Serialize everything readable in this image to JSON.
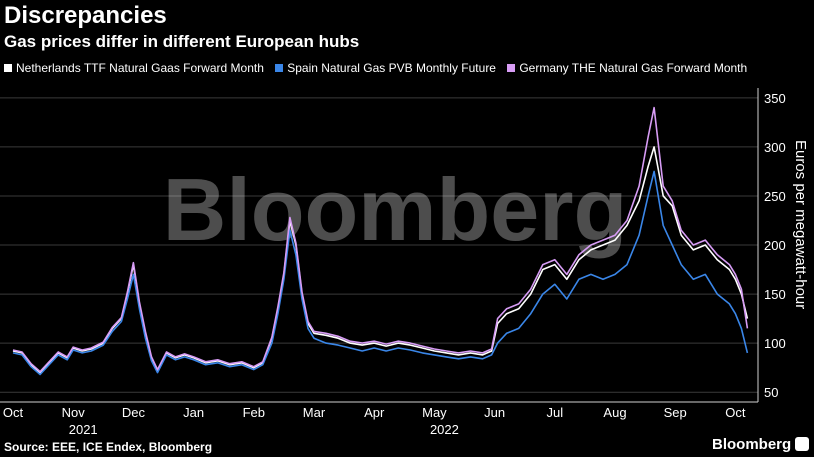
{
  "header": {
    "title": "Discrepancies",
    "subtitle": "Gas prices differ in different European hubs"
  },
  "footer": {
    "source": "Source: EEE, ICE Endex, Bloomberg",
    "brand": "Bloomberg"
  },
  "watermark": "Bloomberg",
  "colors": {
    "netherlands": "#ffffff",
    "spain": "#3a86e8",
    "germany": "#d79cf5",
    "background": "#000000",
    "grid": "#3a3a3a"
  },
  "chart_data": {
    "type": "line",
    "title": "Discrepancies",
    "subtitle": "Gas prices differ in different European hubs",
    "xlabel": "",
    "ylabel": "Euros per megawatt-hour",
    "ylim": [
      40,
      360
    ],
    "y_ticks": [
      50,
      100,
      150,
      200,
      250,
      300,
      350
    ],
    "y_axis_side": "right",
    "grid": true,
    "legend_placement": "top-left",
    "x_months": [
      {
        "label": "Oct",
        "index": 0
      },
      {
        "label": "Nov",
        "index": 1
      },
      {
        "label": "Dec",
        "index": 2
      },
      {
        "label": "Jan",
        "index": 3
      },
      {
        "label": "Feb",
        "index": 4
      },
      {
        "label": "Mar",
        "index": 5
      },
      {
        "label": "Apr",
        "index": 6
      },
      {
        "label": "May",
        "index": 7
      },
      {
        "label": "Jun",
        "index": 8
      },
      {
        "label": "Jul",
        "index": 9
      },
      {
        "label": "Aug",
        "index": 10
      },
      {
        "label": "Sep",
        "index": 11
      },
      {
        "label": "Oct",
        "index": 12
      }
    ],
    "x_years": [
      {
        "label": "2021",
        "index": 1
      },
      {
        "label": "2022",
        "index": 7
      }
    ],
    "series": [
      {
        "name": "Netherlands TTF Natural Gaas Forward Month",
        "key": "netherlands",
        "points": [
          [
            0,
            92
          ],
          [
            0.15,
            90
          ],
          [
            0.3,
            78
          ],
          [
            0.45,
            70
          ],
          [
            0.6,
            80
          ],
          [
            0.75,
            90
          ],
          [
            0.9,
            85
          ],
          [
            1.0,
            95
          ],
          [
            1.15,
            92
          ],
          [
            1.3,
            94
          ],
          [
            1.5,
            100
          ],
          [
            1.65,
            115
          ],
          [
            1.8,
            125
          ],
          [
            1.9,
            150
          ],
          [
            2.0,
            180
          ],
          [
            2.1,
            140
          ],
          [
            2.2,
            110
          ],
          [
            2.3,
            85
          ],
          [
            2.4,
            72
          ],
          [
            2.55,
            90
          ],
          [
            2.7,
            85
          ],
          [
            2.85,
            88
          ],
          [
            3.0,
            85
          ],
          [
            3.2,
            80
          ],
          [
            3.4,
            82
          ],
          [
            3.6,
            78
          ],
          [
            3.8,
            80
          ],
          [
            4.0,
            75
          ],
          [
            4.15,
            80
          ],
          [
            4.3,
            105
          ],
          [
            4.4,
            135
          ],
          [
            4.5,
            170
          ],
          [
            4.6,
            225
          ],
          [
            4.7,
            200
          ],
          [
            4.8,
            150
          ],
          [
            4.9,
            120
          ],
          [
            5.0,
            110
          ],
          [
            5.2,
            108
          ],
          [
            5.4,
            105
          ],
          [
            5.6,
            100
          ],
          [
            5.8,
            98
          ],
          [
            6.0,
            100
          ],
          [
            6.2,
            97
          ],
          [
            6.4,
            100
          ],
          [
            6.6,
            98
          ],
          [
            6.8,
            95
          ],
          [
            7.0,
            92
          ],
          [
            7.2,
            90
          ],
          [
            7.4,
            88
          ],
          [
            7.6,
            90
          ],
          [
            7.8,
            88
          ],
          [
            7.95,
            92
          ],
          [
            8.05,
            120
          ],
          [
            8.2,
            130
          ],
          [
            8.4,
            135
          ],
          [
            8.6,
            150
          ],
          [
            8.8,
            175
          ],
          [
            9.0,
            180
          ],
          [
            9.2,
            165
          ],
          [
            9.4,
            185
          ],
          [
            9.6,
            195
          ],
          [
            9.8,
            200
          ],
          [
            10.0,
            205
          ],
          [
            10.2,
            220
          ],
          [
            10.4,
            245
          ],
          [
            10.55,
            280
          ],
          [
            10.65,
            300
          ],
          [
            10.8,
            250
          ],
          [
            10.95,
            240
          ],
          [
            11.1,
            210
          ],
          [
            11.3,
            195
          ],
          [
            11.5,
            200
          ],
          [
            11.7,
            185
          ],
          [
            11.9,
            175
          ],
          [
            12.0,
            165
          ],
          [
            12.1,
            150
          ],
          [
            12.2,
            125
          ]
        ]
      },
      {
        "name": "Spain Natural Gas PVB Monthly Future",
        "key": "spain",
        "points": [
          [
            0,
            90
          ],
          [
            0.15,
            88
          ],
          [
            0.3,
            76
          ],
          [
            0.45,
            68
          ],
          [
            0.6,
            78
          ],
          [
            0.75,
            88
          ],
          [
            0.9,
            83
          ],
          [
            1.0,
            93
          ],
          [
            1.15,
            90
          ],
          [
            1.3,
            92
          ],
          [
            1.5,
            98
          ],
          [
            1.65,
            112
          ],
          [
            1.8,
            122
          ],
          [
            1.9,
            145
          ],
          [
            2.0,
            170
          ],
          [
            2.1,
            135
          ],
          [
            2.2,
            105
          ],
          [
            2.3,
            82
          ],
          [
            2.4,
            70
          ],
          [
            2.55,
            88
          ],
          [
            2.7,
            83
          ],
          [
            2.85,
            86
          ],
          [
            3.0,
            83
          ],
          [
            3.2,
            78
          ],
          [
            3.4,
            80
          ],
          [
            3.6,
            76
          ],
          [
            3.8,
            78
          ],
          [
            4.0,
            73
          ],
          [
            4.15,
            78
          ],
          [
            4.3,
            100
          ],
          [
            4.4,
            130
          ],
          [
            4.5,
            165
          ],
          [
            4.6,
            215
          ],
          [
            4.7,
            190
          ],
          [
            4.8,
            145
          ],
          [
            4.9,
            115
          ],
          [
            5.0,
            105
          ],
          [
            5.2,
            100
          ],
          [
            5.4,
            98
          ],
          [
            5.6,
            95
          ],
          [
            5.8,
            92
          ],
          [
            6.0,
            95
          ],
          [
            6.2,
            92
          ],
          [
            6.4,
            95
          ],
          [
            6.6,
            93
          ],
          [
            6.8,
            90
          ],
          [
            7.0,
            88
          ],
          [
            7.2,
            86
          ],
          [
            7.4,
            84
          ],
          [
            7.6,
            86
          ],
          [
            7.8,
            84
          ],
          [
            7.95,
            88
          ],
          [
            8.05,
            100
          ],
          [
            8.2,
            110
          ],
          [
            8.4,
            115
          ],
          [
            8.6,
            130
          ],
          [
            8.8,
            150
          ],
          [
            9.0,
            160
          ],
          [
            9.2,
            145
          ],
          [
            9.4,
            165
          ],
          [
            9.6,
            170
          ],
          [
            9.8,
            165
          ],
          [
            10.0,
            170
          ],
          [
            10.2,
            180
          ],
          [
            10.4,
            210
          ],
          [
            10.55,
            250
          ],
          [
            10.65,
            275
          ],
          [
            10.8,
            220
          ],
          [
            10.95,
            200
          ],
          [
            11.1,
            180
          ],
          [
            11.3,
            165
          ],
          [
            11.5,
            170
          ],
          [
            11.7,
            150
          ],
          [
            11.9,
            140
          ],
          [
            12.0,
            130
          ],
          [
            12.1,
            115
          ],
          [
            12.2,
            90
          ]
        ]
      },
      {
        "name": "Germany THE Natural Gas Forward Month",
        "key": "germany",
        "points": [
          [
            0,
            93
          ],
          [
            0.15,
            91
          ],
          [
            0.3,
            79
          ],
          [
            0.45,
            71
          ],
          [
            0.6,
            81
          ],
          [
            0.75,
            91
          ],
          [
            0.9,
            86
          ],
          [
            1.0,
            96
          ],
          [
            1.15,
            93
          ],
          [
            1.3,
            95
          ],
          [
            1.5,
            101
          ],
          [
            1.65,
            116
          ],
          [
            1.8,
            126
          ],
          [
            1.9,
            152
          ],
          [
            2.0,
            182
          ],
          [
            2.1,
            142
          ],
          [
            2.2,
            112
          ],
          [
            2.3,
            86
          ],
          [
            2.4,
            73
          ],
          [
            2.55,
            91
          ],
          [
            2.7,
            86
          ],
          [
            2.85,
            89
          ],
          [
            3.0,
            86
          ],
          [
            3.2,
            81
          ],
          [
            3.4,
            83
          ],
          [
            3.6,
            79
          ],
          [
            3.8,
            81
          ],
          [
            4.0,
            76
          ],
          [
            4.15,
            81
          ],
          [
            4.3,
            106
          ],
          [
            4.4,
            137
          ],
          [
            4.5,
            172
          ],
          [
            4.6,
            228
          ],
          [
            4.7,
            202
          ],
          [
            4.8,
            152
          ],
          [
            4.9,
            122
          ],
          [
            5.0,
            112
          ],
          [
            5.2,
            110
          ],
          [
            5.4,
            107
          ],
          [
            5.6,
            102
          ],
          [
            5.8,
            100
          ],
          [
            6.0,
            102
          ],
          [
            6.2,
            99
          ],
          [
            6.4,
            102
          ],
          [
            6.6,
            100
          ],
          [
            6.8,
            97
          ],
          [
            7.0,
            94
          ],
          [
            7.2,
            92
          ],
          [
            7.4,
            90
          ],
          [
            7.6,
            92
          ],
          [
            7.8,
            90
          ],
          [
            7.95,
            94
          ],
          [
            8.05,
            125
          ],
          [
            8.2,
            135
          ],
          [
            8.4,
            140
          ],
          [
            8.6,
            155
          ],
          [
            8.8,
            180
          ],
          [
            9.0,
            185
          ],
          [
            9.2,
            170
          ],
          [
            9.4,
            190
          ],
          [
            9.6,
            200
          ],
          [
            9.8,
            205
          ],
          [
            10.0,
            210
          ],
          [
            10.2,
            225
          ],
          [
            10.4,
            260
          ],
          [
            10.55,
            310
          ],
          [
            10.65,
            340
          ],
          [
            10.8,
            260
          ],
          [
            10.95,
            245
          ],
          [
            11.1,
            215
          ],
          [
            11.3,
            200
          ],
          [
            11.5,
            205
          ],
          [
            11.7,
            190
          ],
          [
            11.9,
            180
          ],
          [
            12.0,
            170
          ],
          [
            12.1,
            155
          ],
          [
            12.2,
            115
          ]
        ]
      }
    ]
  }
}
